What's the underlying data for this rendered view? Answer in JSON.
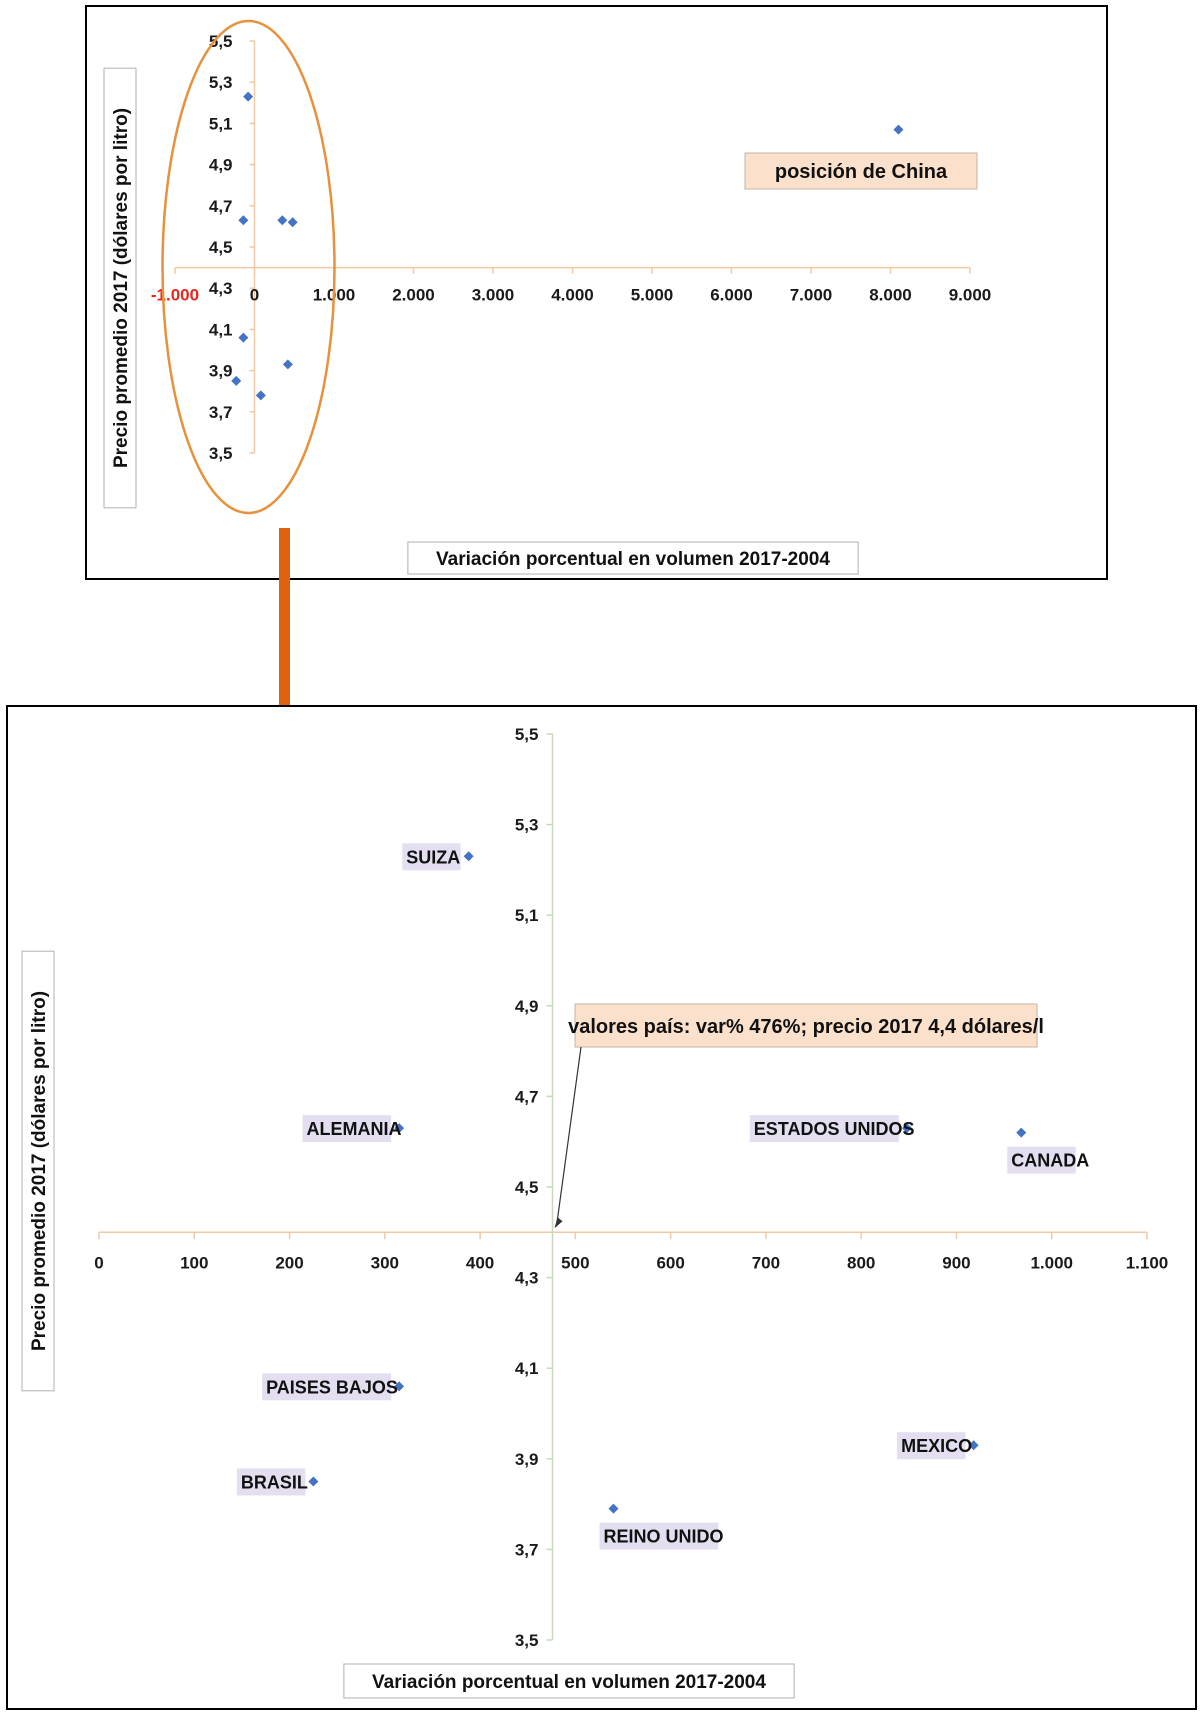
{
  "chart_data": [
    {
      "type": "scatter",
      "xlabel": "Variación porcentual en volumen 2017-2004",
      "ylabel": "Precio promedio 2017 (dólares por litro)",
      "xlim": [
        -1000,
        9000
      ],
      "ylim": [
        3.5,
        5.5
      ],
      "x_ticks": [
        "-1.000",
        "0",
        "1.000",
        "2.000",
        "3.000",
        "4.000",
        "5.000",
        "6.000",
        "7.000",
        "8.000",
        "9.000"
      ],
      "x_tick_values": [
        -1000,
        0,
        1000,
        2000,
        3000,
        4000,
        5000,
        6000,
        7000,
        8000,
        9000
      ],
      "y_ticks": [
        "3,5",
        "3,7",
        "3,9",
        "4,1",
        "4,3",
        "4,5",
        "4,7",
        "4,9",
        "5,1",
        "5,3",
        "5,5"
      ],
      "y_tick_values": [
        3.5,
        3.7,
        3.9,
        4.1,
        4.3,
        4.5,
        4.7,
        4.9,
        5.1,
        5.3,
        5.5
      ],
      "x_axis_crosses_y": 4.4,
      "grid": false,
      "points": [
        {
          "x": -80,
          "y": 5.23
        },
        {
          "x": 8100,
          "y": 5.07
        },
        {
          "x": -140,
          "y": 4.63
        },
        {
          "x": 350,
          "y": 4.63
        },
        {
          "x": 480,
          "y": 4.62
        },
        {
          "x": -140,
          "y": 4.06
        },
        {
          "x": 420,
          "y": 3.93
        },
        {
          "x": -230,
          "y": 3.85
        },
        {
          "x": 80,
          "y": 3.78
        }
      ],
      "annotations": [
        "posición de China"
      ],
      "highlight_color": "#e8913c"
    },
    {
      "type": "scatter",
      "xlabel": "Variación porcentual en volumen 2017-2004",
      "ylabel": "Precio promedio 2017 (dólares por litro)",
      "xlim": [
        0,
        1100
      ],
      "ylim": [
        3.5,
        5.5
      ],
      "x_ticks": [
        "0",
        "100",
        "200",
        "300",
        "400",
        "500",
        "600",
        "700",
        "800",
        "900",
        "1.000",
        "1.100"
      ],
      "x_tick_values": [
        0,
        100,
        200,
        300,
        400,
        500,
        600,
        700,
        800,
        900,
        1000,
        1100
      ],
      "y_ticks": [
        "3,5",
        "3,7",
        "3,9",
        "4,1",
        "4,3",
        "4,5",
        "4,7",
        "4,9",
        "5,1",
        "5,3",
        "5,5"
      ],
      "y_tick_values": [
        3.5,
        3.7,
        3.9,
        4.1,
        4.3,
        4.5,
        4.7,
        4.9,
        5.1,
        5.3,
        5.5
      ],
      "x_axis_crosses_y": 4.4,
      "y_axis_crosses_x": 476,
      "grid": false,
      "points": [
        {
          "label": "SUIZA",
          "x": 388,
          "y": 5.23
        },
        {
          "label": "ALEMANIA",
          "x": 315,
          "y": 4.63
        },
        {
          "label": "ESTADOS UNIDOS",
          "x": 848,
          "y": 4.63
        },
        {
          "label": "CANADA",
          "x": 968,
          "y": 4.62
        },
        {
          "label": "PAISES BAJOS",
          "x": 315,
          "y": 4.06
        },
        {
          "label": "MEXICO",
          "x": 918,
          "y": 3.93
        },
        {
          "label": "BRASIL",
          "x": 225,
          "y": 3.85
        },
        {
          "label": "REINO UNIDO",
          "x": 540,
          "y": 3.79
        }
      ],
      "annotations": [
        "valores país: var% 476%; precio 2017 4,4 dólares/l"
      ],
      "point_color": "#4472c4",
      "axis_color": "#f2c9a2",
      "arrow_color": "#e0620e"
    }
  ]
}
